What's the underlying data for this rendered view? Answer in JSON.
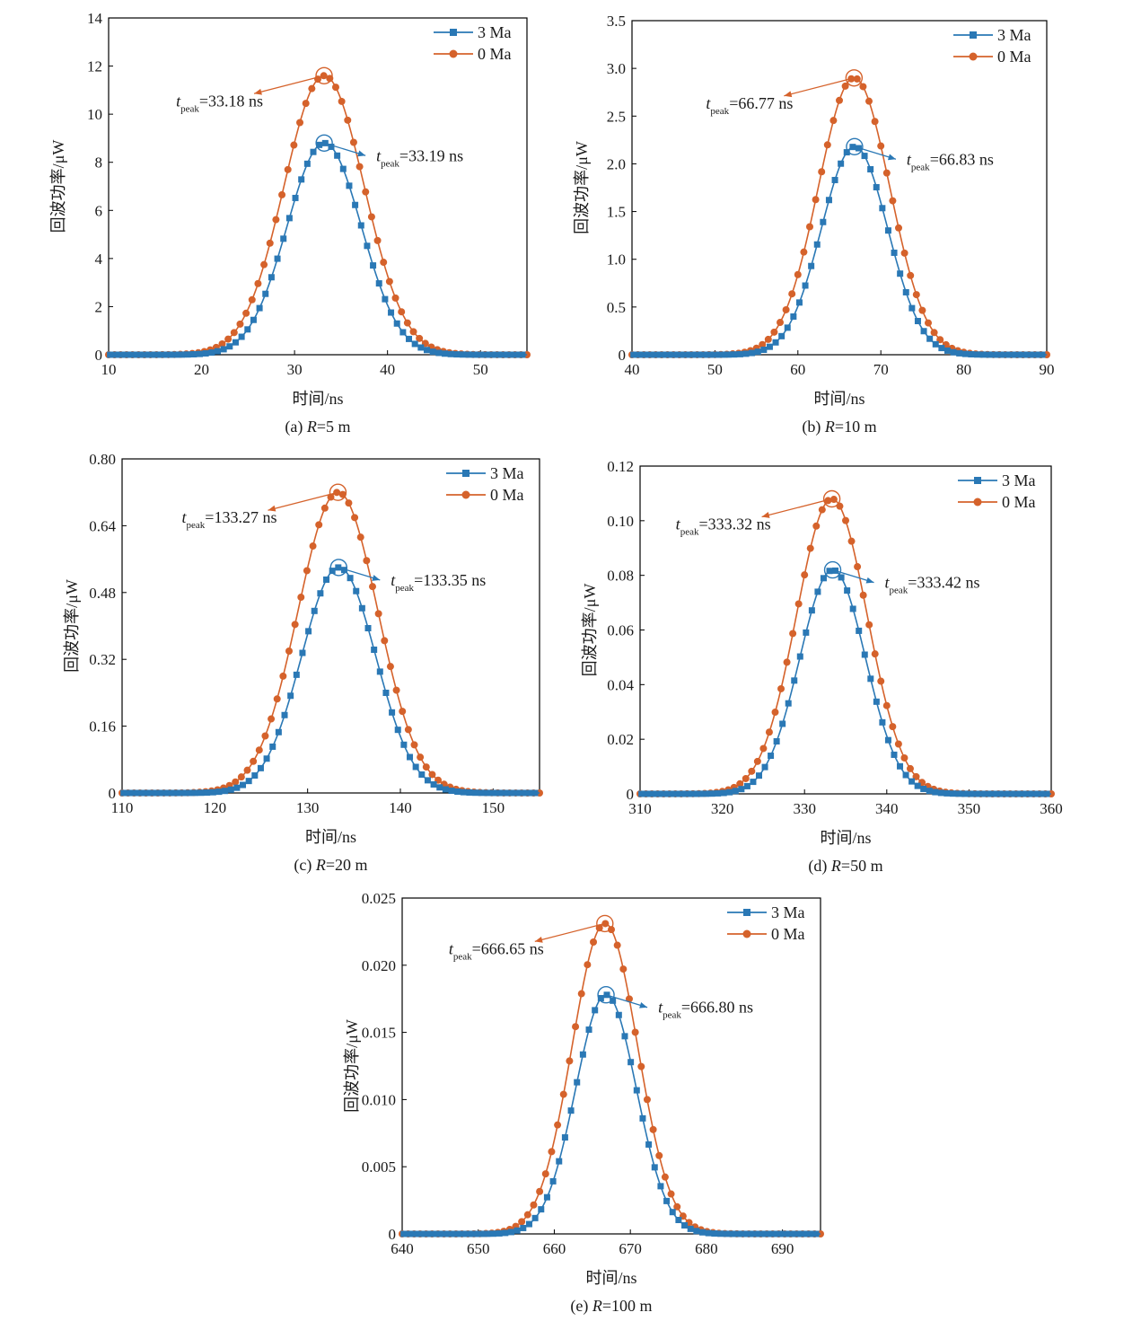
{
  "colors": {
    "series_3ma": "#2a78b5",
    "series_0ma": "#d5622b",
    "axis": "#000000"
  },
  "chart_data": [
    {
      "type": "line",
      "id": "a",
      "caption": {
        "prefix": "(a) ",
        "var": "R",
        "rest": "=5 m"
      },
      "xlabel": "时间/ns",
      "ylabel": "回波功率/μW",
      "xlim": [
        10,
        55
      ],
      "ylim": [
        0,
        14
      ],
      "xticks": [
        "10",
        "20",
        "30",
        "40",
        "50"
      ],
      "yticks": [
        "0",
        "2",
        "4",
        "6",
        "8",
        "10",
        "12",
        "14"
      ],
      "series": [
        {
          "name": "3 Ma",
          "marker": "square",
          "peak": 8.8,
          "mu": 33.19,
          "sigma": 4.0
        },
        {
          "name": "0 Ma",
          "marker": "circle",
          "peak": 11.6,
          "mu": 33.18,
          "sigma": 4.3
        }
      ],
      "annotations": [
        {
          "series": "0 Ma",
          "t": "t",
          "sub": "peak",
          "value": "=33.18 ns",
          "side": "left"
        },
        {
          "series": "3 Ma",
          "t": "t",
          "sub": "peak",
          "value": "=33.19 ns",
          "side": "right"
        }
      ]
    },
    {
      "type": "line",
      "id": "b",
      "caption": {
        "prefix": "(b) ",
        "var": "R",
        "rest": "=10 m"
      },
      "xlabel": "时间/ns",
      "ylabel": "回波功率/μW",
      "xlim": [
        40,
        90
      ],
      "ylim": [
        0,
        3.5
      ],
      "xticks": [
        "40",
        "50",
        "60",
        "70",
        "80",
        "90"
      ],
      "yticks": [
        "0",
        "0.5",
        "1.0",
        "1.5",
        "2.0",
        "2.5",
        "3.0",
        "3.5"
      ],
      "series": [
        {
          "name": "3 Ma",
          "marker": "square",
          "peak": 2.18,
          "mu": 66.83,
          "sigma": 4.0
        },
        {
          "name": "0 Ma",
          "marker": "circle",
          "peak": 2.9,
          "mu": 66.77,
          "sigma": 4.3
        }
      ],
      "annotations": [
        {
          "series": "0 Ma",
          "t": "t",
          "sub": "peak",
          "value": "=66.77 ns",
          "side": "left"
        },
        {
          "series": "3 Ma",
          "t": "t",
          "sub": "peak",
          "value": "=66.83 ns",
          "side": "right"
        }
      ]
    },
    {
      "type": "line",
      "id": "c",
      "caption": {
        "prefix": "(c) ",
        "var": "R",
        "rest": "=20 m"
      },
      "xlabel": "时间/ns",
      "ylabel": "回波功率/μW",
      "xlim": [
        110,
        155
      ],
      "ylim": [
        0,
        0.8
      ],
      "xticks": [
        "110",
        "120",
        "130",
        "140",
        "150"
      ],
      "yticks": [
        "0",
        "0.16",
        "0.32",
        "0.48",
        "0.64",
        "0.80"
      ],
      "series": [
        {
          "name": "3 Ma",
          "marker": "square",
          "peak": 0.54,
          "mu": 133.35,
          "sigma": 4.0
        },
        {
          "name": "0 Ma",
          "marker": "circle",
          "peak": 0.72,
          "mu": 133.27,
          "sigma": 4.3
        }
      ],
      "annotations": [
        {
          "series": "0 Ma",
          "t": "t",
          "sub": "peak",
          "value": "=133.27 ns",
          "side": "left"
        },
        {
          "series": "3 Ma",
          "t": "t",
          "sub": "peak",
          "value": "=133.35 ns",
          "side": "right"
        }
      ]
    },
    {
      "type": "line",
      "id": "d",
      "caption": {
        "prefix": "(d) ",
        "var": "R",
        "rest": "=50 m"
      },
      "xlabel": "时间/ns",
      "ylabel": "回波功率/μW",
      "xlim": [
        310,
        360
      ],
      "ylim": [
        0,
        0.12
      ],
      "xticks": [
        "310",
        "320",
        "330",
        "340",
        "350",
        "360"
      ],
      "yticks": [
        "0",
        "0.02",
        "0.04",
        "0.06",
        "0.08",
        "0.10",
        "0.12"
      ],
      "series": [
        {
          "name": "3 Ma",
          "marker": "square",
          "peak": 0.082,
          "mu": 333.42,
          "sigma": 4.0
        },
        {
          "name": "0 Ma",
          "marker": "circle",
          "peak": 0.108,
          "mu": 333.32,
          "sigma": 4.3
        }
      ],
      "annotations": [
        {
          "series": "0 Ma",
          "t": "t",
          "sub": "peak",
          "value": "=333.32 ns",
          "side": "left"
        },
        {
          "series": "3 Ma",
          "t": "t",
          "sub": "peak",
          "value": "=333.42 ns",
          "side": "right"
        }
      ]
    },
    {
      "type": "line",
      "id": "e",
      "caption": {
        "prefix": "(e) ",
        "var": "R",
        "rest": "=100 m"
      },
      "xlabel": "时间/ns",
      "ylabel": "回波功率/μW",
      "xlim": [
        640,
        695
      ],
      "ylim": [
        0,
        0.025
      ],
      "xticks": [
        "640",
        "650",
        "660",
        "670",
        "680",
        "690"
      ],
      "yticks": [
        "0",
        "0.005",
        "0.010",
        "0.015",
        "0.020",
        "0.025"
      ],
      "series": [
        {
          "name": "3 Ma",
          "marker": "square",
          "peak": 0.0178,
          "mu": 666.8,
          "sigma": 4.0
        },
        {
          "name": "0 Ma",
          "marker": "circle",
          "peak": 0.0231,
          "mu": 666.65,
          "sigma": 4.3
        }
      ],
      "annotations": [
        {
          "series": "0 Ma",
          "t": "t",
          "sub": "peak",
          "value": "=666.65 ns",
          "side": "left"
        },
        {
          "series": "3 Ma",
          "t": "t",
          "sub": "peak",
          "value": "=666.80 ns",
          "side": "right"
        }
      ]
    }
  ]
}
